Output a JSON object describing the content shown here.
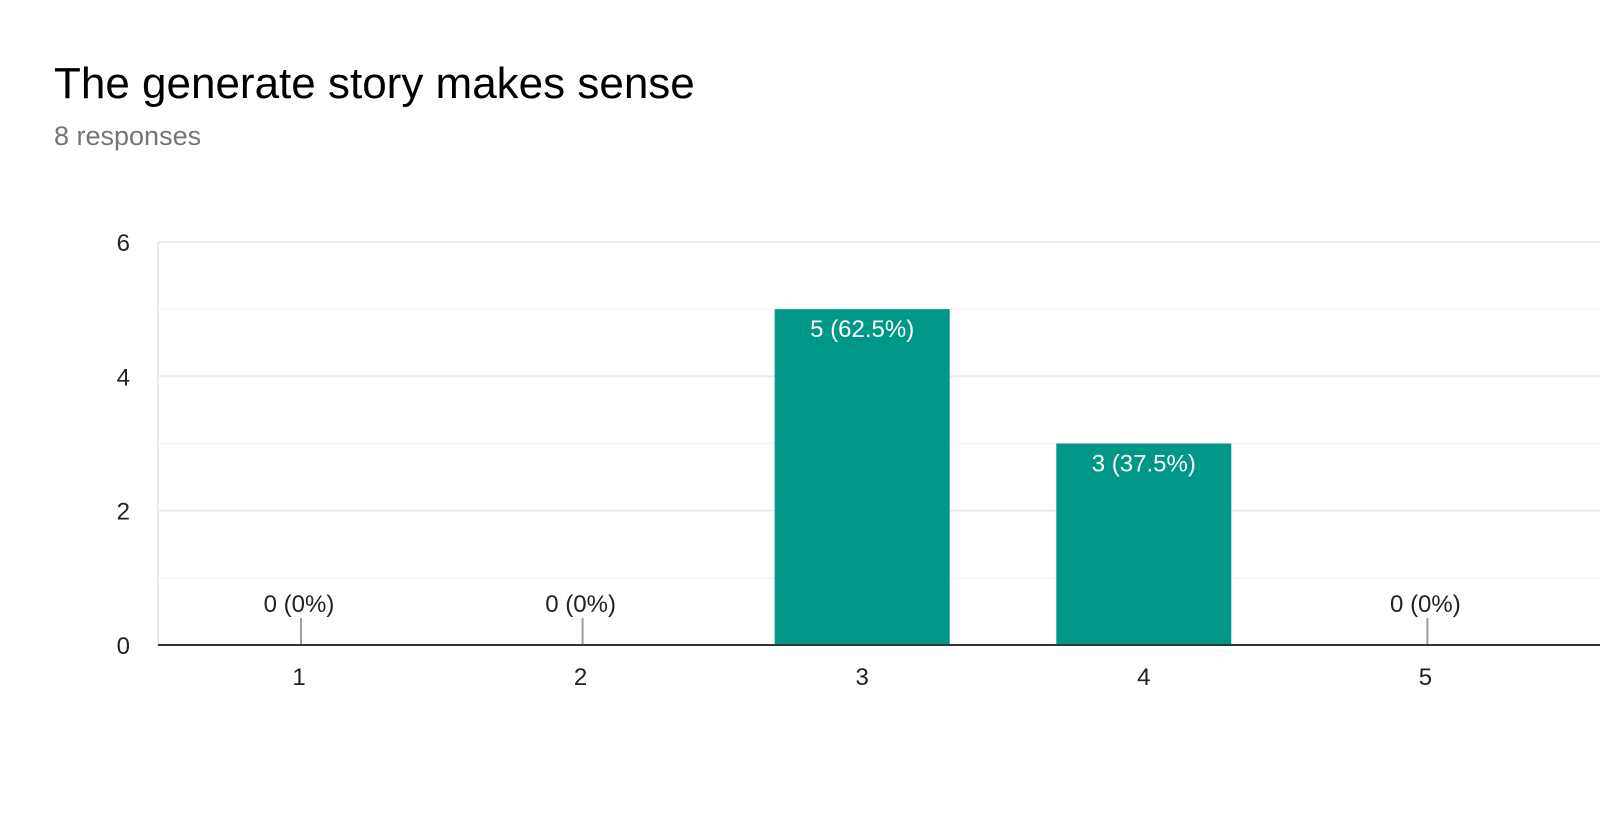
{
  "header": {
    "title": "The generate story makes sense",
    "responses": "8 responses"
  },
  "colors": {
    "bar": "#009688",
    "grid": "#ebebeb",
    "minor_grid": "#f5f5f5",
    "axis": "#333333",
    "label_inside": "#ffffff",
    "label_outside": "#222222",
    "zero_marker": "#9e9e9e"
  },
  "chart_data": {
    "type": "bar",
    "categories": [
      "1",
      "2",
      "3",
      "4",
      "5"
    ],
    "values": [
      0,
      0,
      5,
      3,
      0
    ],
    "data_labels": [
      "0 (0%)",
      "0 (0%)",
      "5 (62.5%)",
      "3 (37.5%)",
      "0 (0%)"
    ],
    "title": "The generate story makes sense",
    "subtitle": "8 responses",
    "xlabel": "",
    "ylabel": "",
    "ylim": [
      0,
      6
    ],
    "yticks": [
      0,
      2,
      4,
      6
    ],
    "grid": true,
    "legend": "none"
  }
}
